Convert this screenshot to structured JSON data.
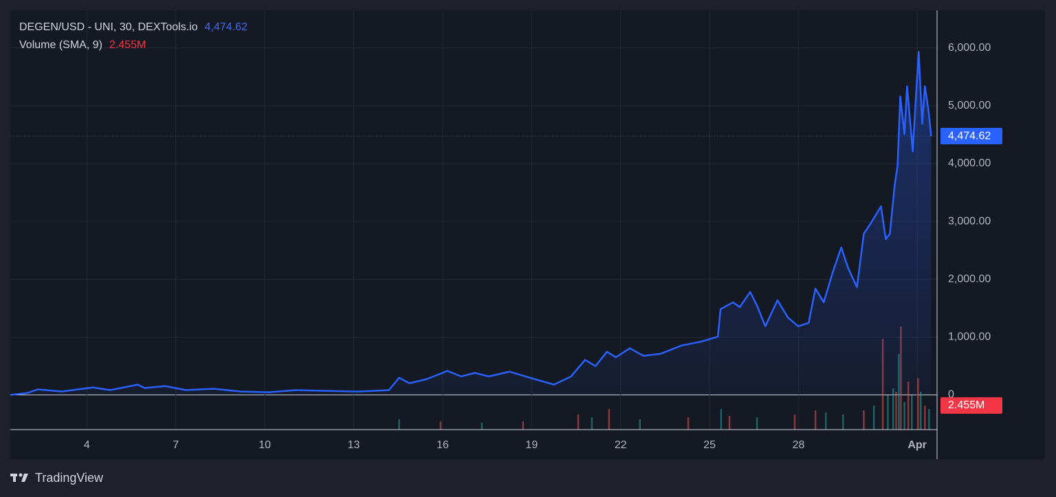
{
  "chart_data": {
    "type": "line",
    "title": "DEGEN/USD - UNI, 30, DEXTools.io",
    "color": "#2962ff",
    "x": [
      1.42,
      2.0,
      2.35,
      3.16,
      4.21,
      4.79,
      5.72,
      5.95,
      6.64,
      7.34,
      8.27,
      9.2,
      10.13,
      11.05,
      11.98,
      13.14,
      14.19,
      14.53,
      14.88,
      15.46,
      16.16,
      16.62,
      17.09,
      17.55,
      18.25,
      18.94,
      19.75,
      20.33,
      20.8,
      21.15,
      21.54,
      21.84,
      22.31,
      22.77,
      23.35,
      24.05,
      24.74,
      25.28,
      25.37,
      25.79,
      26.02,
      26.37,
      26.6,
      26.88,
      27.29,
      27.64,
      27.99,
      28.34,
      28.57,
      28.85,
      29.16,
      29.44,
      29.67,
      29.97,
      30.2,
      30.43,
      30.78,
      30.94,
      31.08,
      31.24,
      31.34,
      31.43,
      31.57,
      31.66,
      31.85,
      31.93,
      32.05,
      32.17,
      32.26,
      32.38,
      32.47
    ],
    "values": [
      0,
      35,
      95,
      60,
      130,
      83,
      178,
      119,
      154,
      83,
      107,
      59,
      47,
      83,
      71,
      59,
      83,
      297,
      202,
      273,
      415,
      320,
      380,
      320,
      403,
      297,
      178,
      320,
      605,
      498,
      747,
      652,
      807,
      676,
      712,
      854,
      925,
      1008,
      1483,
      1601,
      1518,
      1779,
      1542,
      1186,
      1637,
      1340,
      1186,
      1246,
      1839,
      1601,
      2135,
      2550,
      2195,
      1862,
      2788,
      2966,
      3262,
      2693,
      2788,
      3618,
      3974,
      5160,
      4508,
      5338,
      4211,
      4923,
      5931,
      4686,
      5338,
      4923,
      4474.62
    ],
    "last_value": {
      "value": 4474.62,
      "label": "4,474.62"
    },
    "xlim": [
      1.42,
      32.67
    ],
    "xticks": [
      4,
      7,
      10,
      13,
      16,
      19,
      22,
      25,
      28,
      {
        "value": 32,
        "label": "Apr"
      }
    ],
    "ylim": [
      -600,
      6650
    ],
    "yticks": [
      0,
      {
        "value": 1000,
        "label": "1,000.00"
      },
      {
        "value": 2000,
        "label": "2,000.00"
      },
      {
        "value": 3000,
        "label": "3,000.00"
      },
      {
        "value": 4000,
        "label": "4,000.00"
      },
      {
        "value": 5000,
        "label": "5,000.00"
      },
      {
        "value": 6000,
        "label": "6,000.00"
      }
    ],
    "grid": true,
    "volume": {
      "title": "Volume (SMA, 9)",
      "sma_last": {
        "value": 2455000,
        "label": "2.455M"
      },
      "vlim": [
        0,
        10500000
      ],
      "x": [
        14.53,
        15.93,
        17.32,
        18.71,
        20.57,
        21.03,
        21.61,
        22.65,
        24.28,
        25.39,
        25.67,
        26.6,
        27.87,
        28.57,
        28.92,
        29.5,
        30.2,
        30.54,
        30.84,
        31.01,
        31.19,
        31.29,
        31.38,
        31.45,
        31.57,
        31.7,
        31.82,
        32.03,
        32.12,
        32.26,
        32.4
      ],
      "values": [
        1050000,
        840000,
        700000,
        840000,
        1540000,
        1260000,
        2100000,
        1050000,
        1260000,
        2100000,
        1400000,
        1260000,
        1540000,
        1960000,
        1750000,
        1540000,
        1960000,
        2450000,
        9240000,
        3500000,
        4200000,
        3850000,
        7700000,
        10500000,
        2800000,
        4900000,
        3500000,
        5250000,
        3850000,
        2450000,
        2100000
      ],
      "colors": [
        "#26a69a",
        "#ef5350",
        "#26a69a",
        "#ef5350",
        "#ef5350",
        "#26a69a",
        "#ef5350",
        "#26a69a",
        "#ef5350",
        "#26a69a",
        "#ef5350",
        "#26a69a",
        "#ef5350",
        "#ef5350",
        "#26a69a",
        "#26a69a",
        "#ef5350",
        "#26a69a",
        "#ef5350",
        "#26a69a",
        "#26a69a",
        "#ef5350",
        "#26a69a",
        "#ef5350",
        "#26a69a",
        "#ef5350",
        "#26a69a",
        "#ef5350",
        "#26a69a",
        "#ef5350",
        "#26a69a"
      ]
    }
  },
  "footer": {
    "brand": "TradingView"
  }
}
